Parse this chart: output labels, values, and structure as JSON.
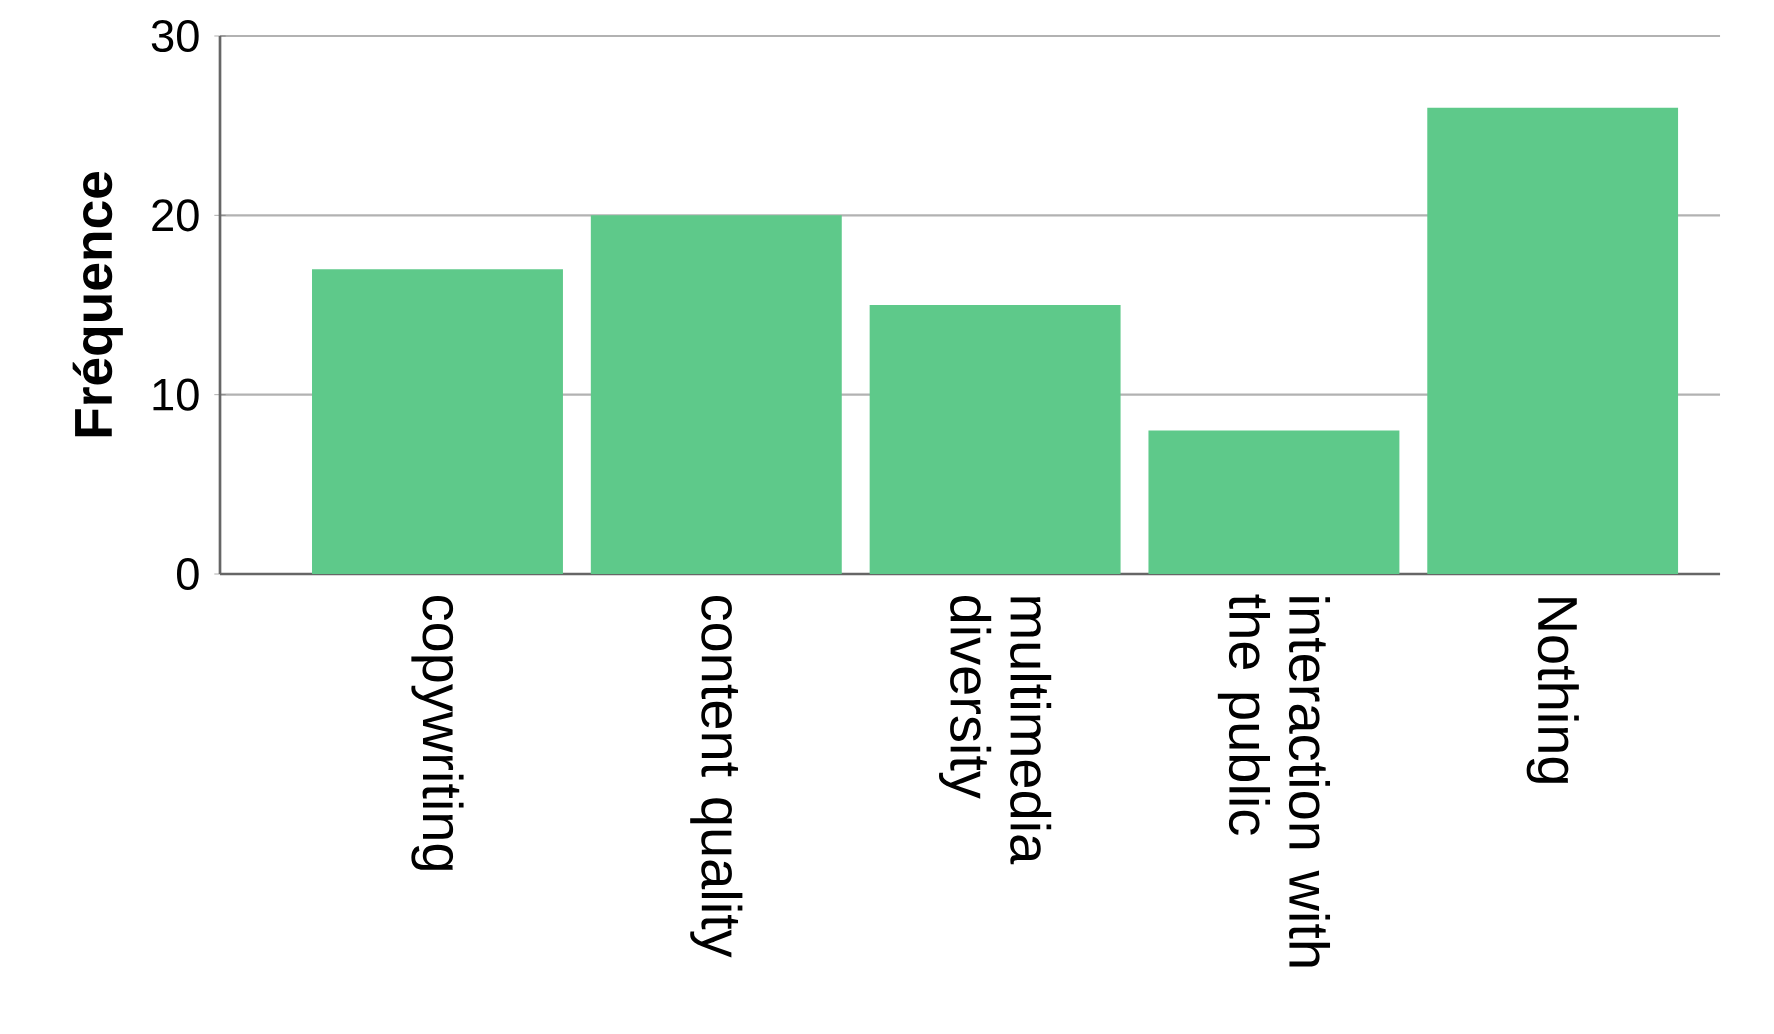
{
  "chart_data": {
    "type": "bar",
    "ylabel": "Fréquence",
    "categories": [
      "copywriting",
      "content quality",
      "multimedia diversity",
      "interaction with the public",
      "Nothing"
    ],
    "values": [
      17,
      20,
      15,
      8,
      26
    ],
    "color": "#5ec98a",
    "ylim": [
      0,
      30
    ],
    "yticks": [
      0,
      10,
      20,
      30
    ],
    "grid": "y"
  }
}
